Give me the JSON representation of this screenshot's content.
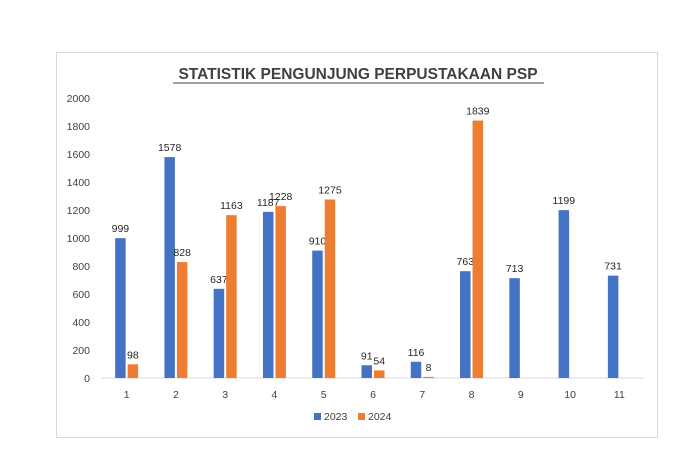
{
  "chart_data": {
    "type": "bar",
    "title": "STATISTIK PENGUNJUNG PERPUSTAKAAN PSP",
    "xlabel": "",
    "ylabel": "",
    "categories": [
      "1",
      "2",
      "3",
      "4",
      "5",
      "6",
      "7",
      "8",
      "9",
      "10",
      "11"
    ],
    "ylim": [
      0,
      2000
    ],
    "yticks": [
      0,
      200,
      400,
      600,
      800,
      1000,
      1200,
      1400,
      1600,
      1800,
      2000
    ],
    "grid": false,
    "legend_position": "bottom",
    "series": [
      {
        "name": "2023",
        "color": "#4472c4",
        "values": [
          999,
          1578,
          637,
          1187,
          910,
          91,
          116,
          763,
          713,
          1199,
          731
        ]
      },
      {
        "name": "2024",
        "color": "#ed7d31",
        "values": [
          98,
          828,
          1163,
          1228,
          1275,
          54,
          8,
          1839,
          null,
          null,
          null
        ]
      }
    ]
  }
}
